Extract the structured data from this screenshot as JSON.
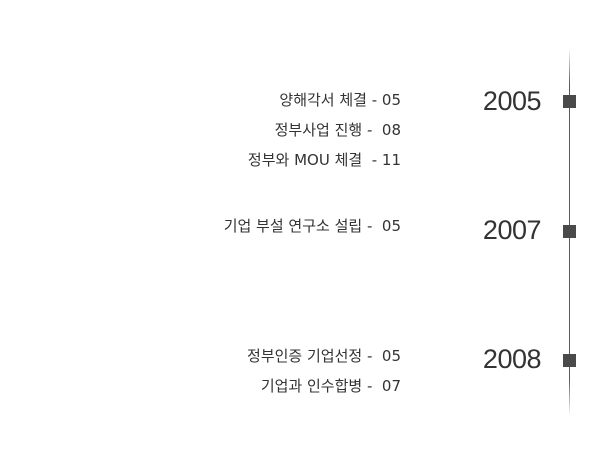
{
  "timeline": {
    "entries": [
      {
        "year": "2005",
        "events": [
          "양해각서 체결 - 05",
          "정부사업 진행 -  08",
          "정부와 MOU 체결  - 11"
        ]
      },
      {
        "year": "2007",
        "events": [
          "기업 부설 연구소 설립 -  05"
        ]
      },
      {
        "year": "2008",
        "events": [
          "정부인증 기업선정 -  05",
          "기업과 인수합병 -  07"
        ]
      }
    ]
  }
}
